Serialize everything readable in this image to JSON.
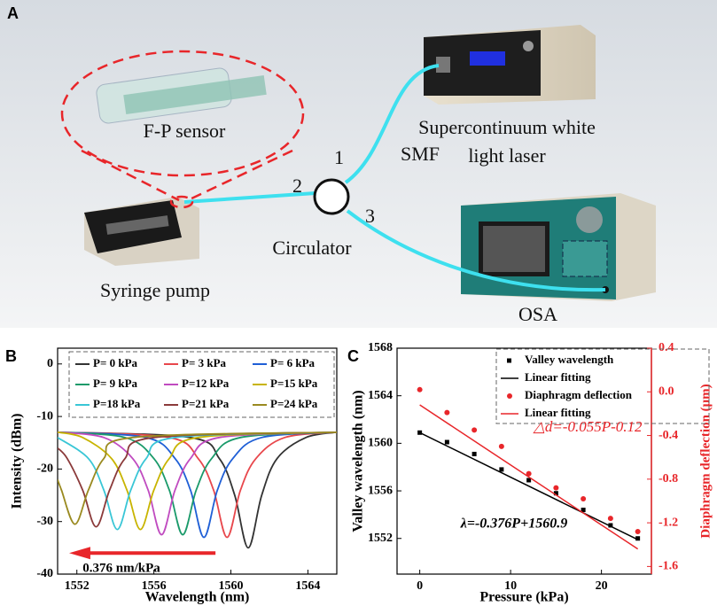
{
  "diagram": {
    "panel_label": "A",
    "labels": {
      "fp_sensor": "F-P sensor",
      "laser": [
        "Supercontinuum white",
        "light laser"
      ],
      "smf": "SMF",
      "port1": "1",
      "port2": "2",
      "port3": "3",
      "circulator": "Circulator",
      "pump": "Syringe pump",
      "osa": "OSA"
    }
  },
  "chart_data": [
    {
      "type": "line",
      "panel_label": "B",
      "xlabel": "Wavelength (nm)",
      "ylabel": "Intensity (dBm)",
      "xlim": [
        1551,
        1565.5
      ],
      "ylim": [
        -40,
        3
      ],
      "xticks": [
        1552,
        1556,
        1560,
        1564
      ],
      "yticks": [
        0,
        -10,
        -20,
        -30,
        -40
      ],
      "legend": "top-right",
      "annotation": "0.376 nm/kPa",
      "annotation_color": "#e8262a",
      "series": [
        {
          "name": "P= 0 kPa",
          "color": "#333333",
          "x": [
            1551,
            1557.9,
            1559.4,
            1560.2,
            1560.9,
            1561.6,
            1562.4,
            1563.9,
            1565.5
          ],
          "values": [
            -13,
            -14,
            -18,
            -25,
            -35,
            -25,
            -18,
            -14,
            -13
          ]
        },
        {
          "name": "P= 3 kPa",
          "color": "#e8474c",
          "x": [
            1551,
            1556.8,
            1558.3,
            1559.1,
            1559.8,
            1560.5,
            1561.3,
            1562.8,
            1565.5
          ],
          "values": [
            -13,
            -14,
            -18,
            -24,
            -33,
            -24,
            -18,
            -14,
            -13
          ]
        },
        {
          "name": "P= 6 kPa",
          "color": "#1f5fd6",
          "x": [
            1551,
            1555.6,
            1557.1,
            1557.9,
            1558.6,
            1559.3,
            1560.1,
            1561.6,
            1565.5
          ],
          "values": [
            -13,
            -14,
            -18,
            -24,
            -33,
            -24,
            -18,
            -14,
            -13
          ]
        },
        {
          "name": "P= 9 kPa",
          "color": "#1a9a6a",
          "x": [
            1551,
            1554.5,
            1556,
            1556.8,
            1557.5,
            1558.2,
            1559,
            1560.5,
            1565.5
          ],
          "values": [
            -13,
            -14,
            -18,
            -24,
            -32.5,
            -24,
            -18,
            -14,
            -13
          ]
        },
        {
          "name": "P=12 kPa",
          "color": "#c04bc0",
          "x": [
            1551,
            1553.4,
            1554.9,
            1555.7,
            1556.4,
            1557.1,
            1557.9,
            1559.4,
            1565.5
          ],
          "values": [
            -13,
            -14,
            -18,
            -24,
            -32.5,
            -24,
            -18,
            -14,
            -13
          ]
        },
        {
          "name": "P=15 kPa",
          "color": "#c8b400",
          "x": [
            1551,
            1552.3,
            1553.8,
            1554.6,
            1555.3,
            1556,
            1556.8,
            1558.3,
            1565.5
          ],
          "values": [
            -13,
            -14,
            -18,
            -24,
            -31.5,
            -24,
            -18,
            -14,
            -13
          ]
        },
        {
          "name": "P=18 kPa",
          "color": "#39c6d6",
          "x": [
            1551,
            1552.6,
            1553.4,
            1554.1,
            1554.8,
            1555.6,
            1557.1,
            1565.5
          ],
          "values": [
            -14,
            -18,
            -24,
            -31.5,
            -24,
            -18,
            -14,
            -13
          ]
        },
        {
          "name": "P=21 kPa",
          "color": "#8b3a3a",
          "x": [
            1551,
            1551.5,
            1552.3,
            1553,
            1553.7,
            1554.5,
            1556,
            1565.5
          ],
          "values": [
            -16,
            -18,
            -24,
            -31,
            -24,
            -18,
            -14,
            -13
          ]
        },
        {
          "name": "P=24 kPa",
          "color": "#9a8a20",
          "x": [
            1551,
            1551.2,
            1551.9,
            1552.6,
            1553.4,
            1554.9,
            1565.5
          ],
          "values": [
            -22,
            -24,
            -30.5,
            -24,
            -18,
            -14,
            -13
          ]
        }
      ]
    },
    {
      "type": "scatter",
      "panel_label": "C",
      "xlabel": "Pressure (kPa)",
      "ylabel": "Valley wavelength (nm)",
      "y2label": "Diaphragm deflection (μm)",
      "y2color": "#e8262a",
      "xlim": [
        -2.5,
        25.5
      ],
      "ylim": [
        1549,
        1568
      ],
      "y2lim": [
        -1.67,
        0.4
      ],
      "xticks": [
        0,
        10,
        20
      ],
      "yticks": [
        1552,
        1556,
        1560,
        1564,
        1568
      ],
      "y2ticks": [
        0.4,
        {
          "value": 0,
          "label": "0.0"
        },
        -0.4,
        -0.8,
        -1.2,
        -1.6
      ],
      "legend": "top-right",
      "annotations": [
        "λ=-0.376P+1560.9",
        "△d=-0.055P-0.12"
      ],
      "series": [
        {
          "name": "Valley wavelength",
          "color": "#000000",
          "marker": "square",
          "x": [
            0,
            3,
            6,
            9,
            12,
            15,
            18,
            21,
            24
          ],
          "values": [
            1560.9,
            1560.1,
            1559.1,
            1557.8,
            1556.9,
            1555.8,
            1554.4,
            1553.1,
            1552.0
          ]
        },
        {
          "name": "Linear fitting",
          "color": "#000000",
          "marker": "line",
          "x": [
            0,
            24
          ],
          "values": [
            1560.9,
            1551.9
          ]
        },
        {
          "name": "Diaphragm deflection",
          "color": "#e8262a",
          "marker": "circle",
          "axis": "y2",
          "x": [
            0,
            3,
            6,
            9,
            12,
            15,
            18,
            21,
            24
          ],
          "values": [
            0.02,
            -0.19,
            -0.35,
            -0.5,
            -0.75,
            -0.88,
            -0.98,
            -1.16,
            -1.28
          ]
        },
        {
          "name": "Linear fitting",
          "color": "#e8262a",
          "marker": "line",
          "axis": "y2",
          "x": [
            0,
            24
          ],
          "values": [
            -0.12,
            -1.44
          ]
        }
      ]
    }
  ]
}
